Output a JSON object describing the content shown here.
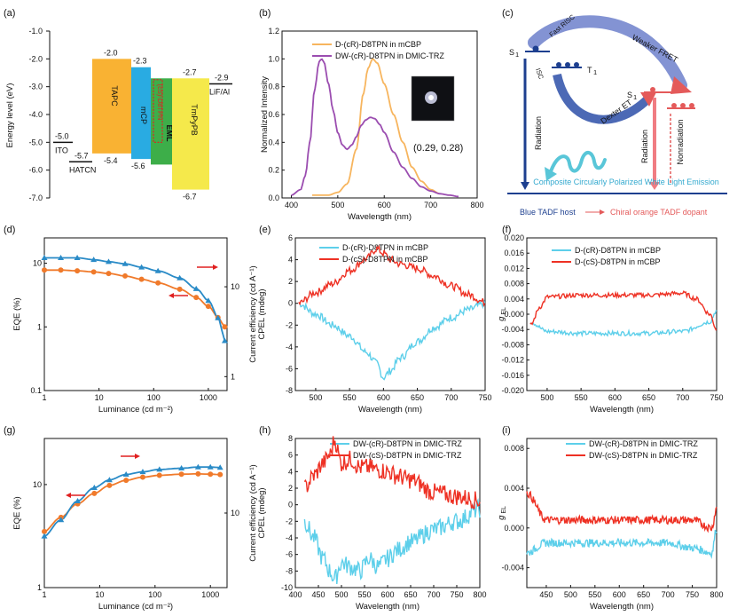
{
  "panels": [
    "(a)",
    "(b)",
    "(c)",
    "(d)",
    "(e)",
    "(f)",
    "(g)",
    "(h)",
    "(i)"
  ],
  "colors": {
    "tapc": "#F9B233",
    "mcp": "#29ABE2",
    "eml": "#3DAE49",
    "tmpypb": "#F5E94B",
    "orange": "#F7B55E",
    "purple": "#9B4DB0",
    "blue": "#2A8BC7",
    "ored": "#F07A2B",
    "cyan": "#5DCFEA",
    "red": "#EE3124",
    "navy": "#1D3F8F",
    "pink": "#F07C82"
  },
  "chart_data": [
    {
      "id": "a",
      "type": "diagram",
      "ylabel": "Energy level (eV)",
      "ylim": [
        -7.0,
        -1.0
      ],
      "yticks": [
        -1.0,
        -2.0,
        -3.0,
        -4.0,
        -5.0,
        -6.0,
        -7.0
      ],
      "layers": [
        {
          "name": "ITO",
          "level": -5.0,
          "label": "-5.0"
        },
        {
          "name": "HATCN",
          "level": -5.7,
          "label": "-5.7"
        },
        {
          "name": "TAPC",
          "top": -2.0,
          "bottom": -5.4,
          "top_label": "-2.0",
          "bottom_label": "-5.4"
        },
        {
          "name": "mCP",
          "top": -2.3,
          "bottom": -5.6,
          "top_label": "-2.3",
          "bottom_label": "-5.6"
        },
        {
          "name": "EML",
          "top": -2.7,
          "bottom": -5.8,
          "inner": "(cS)-D8TPN"
        },
        {
          "name": "TmPyPB",
          "top": -2.7,
          "bottom": -6.7,
          "top_label": "-2.7",
          "bottom_label": "-6.7"
        },
        {
          "name": "LiF/Al",
          "level": -2.9,
          "label": "-2.9"
        }
      ]
    },
    {
      "id": "b",
      "type": "line",
      "xlabel": "Wavelength (nm)",
      "ylabel": "Normalized Intensity",
      "xlim": [
        380,
        800
      ],
      "ylim": [
        0,
        1.2
      ],
      "xticks": [
        400,
        500,
        600,
        700,
        800
      ],
      "yticks": [
        0.0,
        0.2,
        0.4,
        0.6,
        0.8,
        1.0,
        1.2
      ],
      "series": [
        {
          "name": "D-(cR)-D8TPN in mCBP",
          "x": [
            445,
            460,
            480,
            500,
            520,
            540,
            555,
            565,
            575,
            585,
            600,
            620,
            640,
            660,
            680,
            700,
            720
          ],
          "y": [
            0.02,
            0.02,
            0.02,
            0.04,
            0.1,
            0.35,
            0.75,
            0.93,
            1.0,
            0.97,
            0.82,
            0.6,
            0.4,
            0.22,
            0.12,
            0.06,
            0.03
          ]
        },
        {
          "name": "DW-(cR)-D8TPN in DMIC-TRZ",
          "x": [
            400,
            420,
            430,
            440,
            450,
            460,
            465,
            470,
            480,
            490,
            500,
            510,
            520,
            530,
            540,
            550,
            560,
            570,
            580,
            590,
            600,
            620,
            640,
            660,
            680,
            700,
            720,
            740,
            760
          ],
          "y": [
            0.02,
            0.06,
            0.16,
            0.4,
            0.78,
            0.98,
            1.0,
            0.98,
            0.82,
            0.63,
            0.47,
            0.38,
            0.35,
            0.38,
            0.44,
            0.52,
            0.56,
            0.58,
            0.57,
            0.53,
            0.47,
            0.33,
            0.22,
            0.14,
            0.08,
            0.05,
            0.03,
            0.02,
            0.01
          ]
        }
      ],
      "annotation": "(0.29, 0.28)"
    },
    {
      "id": "c",
      "type": "diagram",
      "labels": {
        "s1_left": "S",
        "t1": "T",
        "s1_right": "S",
        "sub": "1",
        "weaker_fret": "Weaker FRET",
        "fast_risc": "Fast RISC",
        "isc": "ISC",
        "dexter": "Dexter ET",
        "radiation": "Radiation",
        "nonradiation": "Nonradiation",
        "cpwle": "Composite Circularly Polarized White Light Emission",
        "host": "Blue TADF host",
        "dopant": "Chiral orange TADF dopant"
      }
    },
    {
      "id": "d",
      "type": "line",
      "scale": "log",
      "xlabel": "Luminance (cd m⁻²)",
      "ylabel": "EQE (%)",
      "y2label": "Current efficiency (cd A⁻¹)",
      "xticks": [
        "1",
        "10",
        "100",
        "1000"
      ],
      "yticks": [
        "0.1",
        "1",
        "10"
      ],
      "y2ticks": [
        "1",
        "10"
      ],
      "series": [
        {
          "name": "EQE",
          "x": [
            1,
            2,
            4,
            8,
            15,
            30,
            60,
            120,
            300,
            600,
            1000,
            1500,
            2000
          ],
          "y": [
            7.8,
            7.8,
            7.6,
            7.3,
            6.9,
            6.3,
            5.6,
            4.9,
            3.9,
            2.9,
            2.1,
            1.4,
            1.0
          ]
        },
        {
          "name": "Current efficiency",
          "x": [
            1,
            2,
            4,
            8,
            15,
            30,
            60,
            120,
            300,
            600,
            1000,
            1500,
            2000
          ],
          "y": [
            21,
            21,
            21,
            20,
            19,
            18,
            16.5,
            15,
            12.5,
            9.5,
            7,
            4.5,
            2.5
          ]
        }
      ]
    },
    {
      "id": "e",
      "type": "line",
      "xlabel": "Wavelength (nm)",
      "ylabel": "CPEL (mdeg)",
      "xlim": [
        470,
        750
      ],
      "ylim": [
        -8,
        6
      ],
      "xticks": [
        500,
        550,
        600,
        650,
        700,
        750
      ],
      "yticks": [
        6,
        4,
        2,
        0,
        -2,
        -4,
        -6,
        -8
      ],
      "series": [
        {
          "name": "D-(cR)-D8TPN in mCBP",
          "x": [
            475,
            500,
            525,
            550,
            575,
            590,
            600,
            610,
            625,
            650,
            675,
            700,
            725,
            750
          ],
          "y": [
            0,
            -1,
            -2,
            -3,
            -4.5,
            -5.5,
            -6.8,
            -6.2,
            -5,
            -3.5,
            -2.2,
            -1.3,
            -0.6,
            0
          ]
        },
        {
          "name": "D-(cS)-D8TPN in mCBP",
          "x": [
            475,
            500,
            525,
            550,
            575,
            590,
            600,
            610,
            625,
            650,
            675,
            700,
            725,
            750
          ],
          "y": [
            0,
            1,
            1.8,
            3,
            4.1,
            5,
            4.6,
            4,
            3.6,
            3.2,
            2.5,
            1.6,
            0.8,
            0.1
          ]
        }
      ]
    },
    {
      "id": "f",
      "type": "line",
      "xlabel": "Wavelength (nm)",
      "ylabel": "g EL",
      "xlim": [
        470,
        750
      ],
      "ylim": [
        -0.02,
        0.02
      ],
      "xticks": [
        500,
        550,
        600,
        650,
        700,
        750
      ],
      "yticks": [
        "0.020",
        "0.016",
        "0.012",
        "0.008",
        "0.004",
        "0.000",
        "-0.004",
        "-0.008",
        "-0.012",
        "-0.016",
        "-0.020"
      ],
      "series": [
        {
          "name": "D-(cR)-D8TPN in mCBP",
          "x": [
            475,
            500,
            550,
            600,
            650,
            700,
            740,
            750
          ],
          "y": [
            -0.002,
            -0.0045,
            -0.005,
            -0.005,
            -0.005,
            -0.0045,
            -0.002,
            0.001
          ]
        },
        {
          "name": "D-(cS)-D8TPN in mCBP",
          "x": [
            475,
            490,
            500,
            550,
            600,
            650,
            700,
            720,
            740,
            750
          ],
          "y": [
            -0.003,
            0.002,
            0.0045,
            0.005,
            0.005,
            0.005,
            0.0055,
            0.004,
            0.0,
            -0.004
          ]
        }
      ]
    },
    {
      "id": "g",
      "type": "line",
      "scale": "log",
      "xlabel": "Luminance (cd m⁻²)",
      "ylabel": "EQE (%)",
      "y2label": "Current efficiency (cd A⁻¹)",
      "xticks": [
        "1",
        "10",
        "100",
        "1000"
      ],
      "yticks": [
        "1",
        "10"
      ],
      "y2ticks": [
        "10"
      ],
      "series": [
        {
          "name": "EQE",
          "x": [
            1,
            2,
            4,
            8,
            15,
            30,
            60,
            120,
            300,
            600,
            1000,
            1500
          ],
          "y": [
            3.5,
            4.8,
            6.5,
            8.2,
            9.8,
            11,
            11.8,
            12.3,
            12.6,
            12.7,
            12.6,
            12.5
          ]
        },
        {
          "name": "Current efficiency",
          "x": [
            1,
            2,
            4,
            8,
            15,
            30,
            60,
            120,
            300,
            600,
            1000,
            1500
          ],
          "y": [
            6.5,
            8.8,
            12.5,
            16,
            18.5,
            20.5,
            21.5,
            22.5,
            23,
            23.5,
            23.5,
            23.3
          ]
        }
      ]
    },
    {
      "id": "h",
      "type": "line",
      "xlabel": "Wavelength (nm)",
      "ylabel": "CPEL (mdeg)",
      "xlim": [
        400,
        800
      ],
      "ylim": [
        -10,
        8
      ],
      "xticks": [
        400,
        450,
        500,
        550,
        600,
        650,
        700,
        750,
        800
      ],
      "yticks": [
        8,
        6,
        4,
        2,
        0,
        -2,
        -4,
        -6,
        -8,
        -10
      ],
      "series": [
        {
          "name": "DW-(cR)-D8TPN in DMIC-TRZ",
          "x": [
            420,
            440,
            460,
            475,
            485,
            500,
            520,
            540,
            560,
            580,
            600,
            620,
            650,
            700,
            750,
            800
          ],
          "y": [
            -2,
            -4,
            -6.5,
            -8,
            -9,
            -7,
            -7.5,
            -8,
            -6.5,
            -7.5,
            -6.5,
            -5.5,
            -4.5,
            -3,
            -2,
            -0.5
          ]
        },
        {
          "name": "DW-(cS)-D8TPN in DMIC-TRZ",
          "x": [
            420,
            440,
            460,
            475,
            485,
            500,
            520,
            540,
            560,
            580,
            600,
            620,
            650,
            700,
            750,
            800
          ],
          "y": [
            2,
            3.5,
            5,
            6,
            7.8,
            5,
            5.5,
            4.5,
            4.5,
            4.2,
            4,
            3.5,
            3,
            1.5,
            1,
            0.5
          ]
        }
      ]
    },
    {
      "id": "i",
      "type": "line",
      "xlabel": "Wavelength (nm)",
      "ylabel": "g EL",
      "xlim": [
        410,
        800
      ],
      "ylim": [
        -0.006,
        0.009
      ],
      "xticks": [
        450,
        500,
        550,
        600,
        650,
        700,
        750,
        800
      ],
      "yticks": [
        "0.008",
        "0.004",
        "0.000",
        "-0.004"
      ],
      "series": [
        {
          "name": "DW-(cR)-D8TPN in DMIC-TRZ",
          "x": [
            410,
            450,
            500,
            550,
            600,
            650,
            700,
            750,
            790,
            800
          ],
          "y": [
            -0.0025,
            -0.0015,
            -0.0015,
            -0.0015,
            -0.0015,
            -0.0015,
            -0.0015,
            -0.002,
            -0.0025,
            0.0
          ]
        },
        {
          "name": "DW-(cS)-D8TPN in DMIC-TRZ",
          "x": [
            410,
            450,
            500,
            550,
            600,
            650,
            700,
            750,
            790,
            800
          ],
          "y": [
            0.0035,
            0.0008,
            0.0008,
            0.0008,
            0.0008,
            0.0008,
            0.0008,
            0.0008,
            0.0,
            0.002
          ]
        }
      ]
    }
  ]
}
